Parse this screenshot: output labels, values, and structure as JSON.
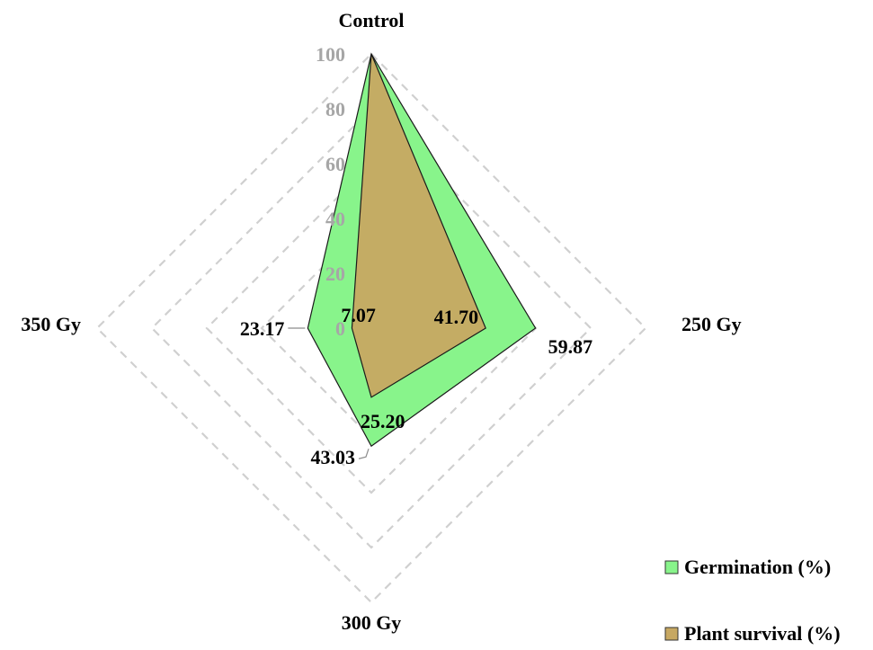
{
  "chart_data": {
    "type": "radar",
    "title": "",
    "categories": [
      "Control",
      "250 Gy",
      "300 Gy",
      "350 Gy"
    ],
    "rlim": [
      0,
      100
    ],
    "ticks": [
      "0",
      "20",
      "40",
      "60",
      "80",
      "100"
    ],
    "tick_values": [
      0,
      20,
      40,
      60,
      80,
      100
    ],
    "grid": true,
    "legend_position": "bottom-right",
    "series": [
      {
        "name": "Germination (%)",
        "values": [
          100,
          59.87,
          43.03,
          23.17
        ],
        "labels": [
          "",
          "59.87",
          "43.03",
          "23.17"
        ],
        "color": "#88f48b"
      },
      {
        "name": "Plant survival (%)",
        "values": [
          100,
          41.7,
          25.2,
          7.07
        ],
        "labels": [
          "",
          "41.70",
          "25.20",
          "7.07"
        ],
        "color": "#c7a862"
      }
    ]
  }
}
